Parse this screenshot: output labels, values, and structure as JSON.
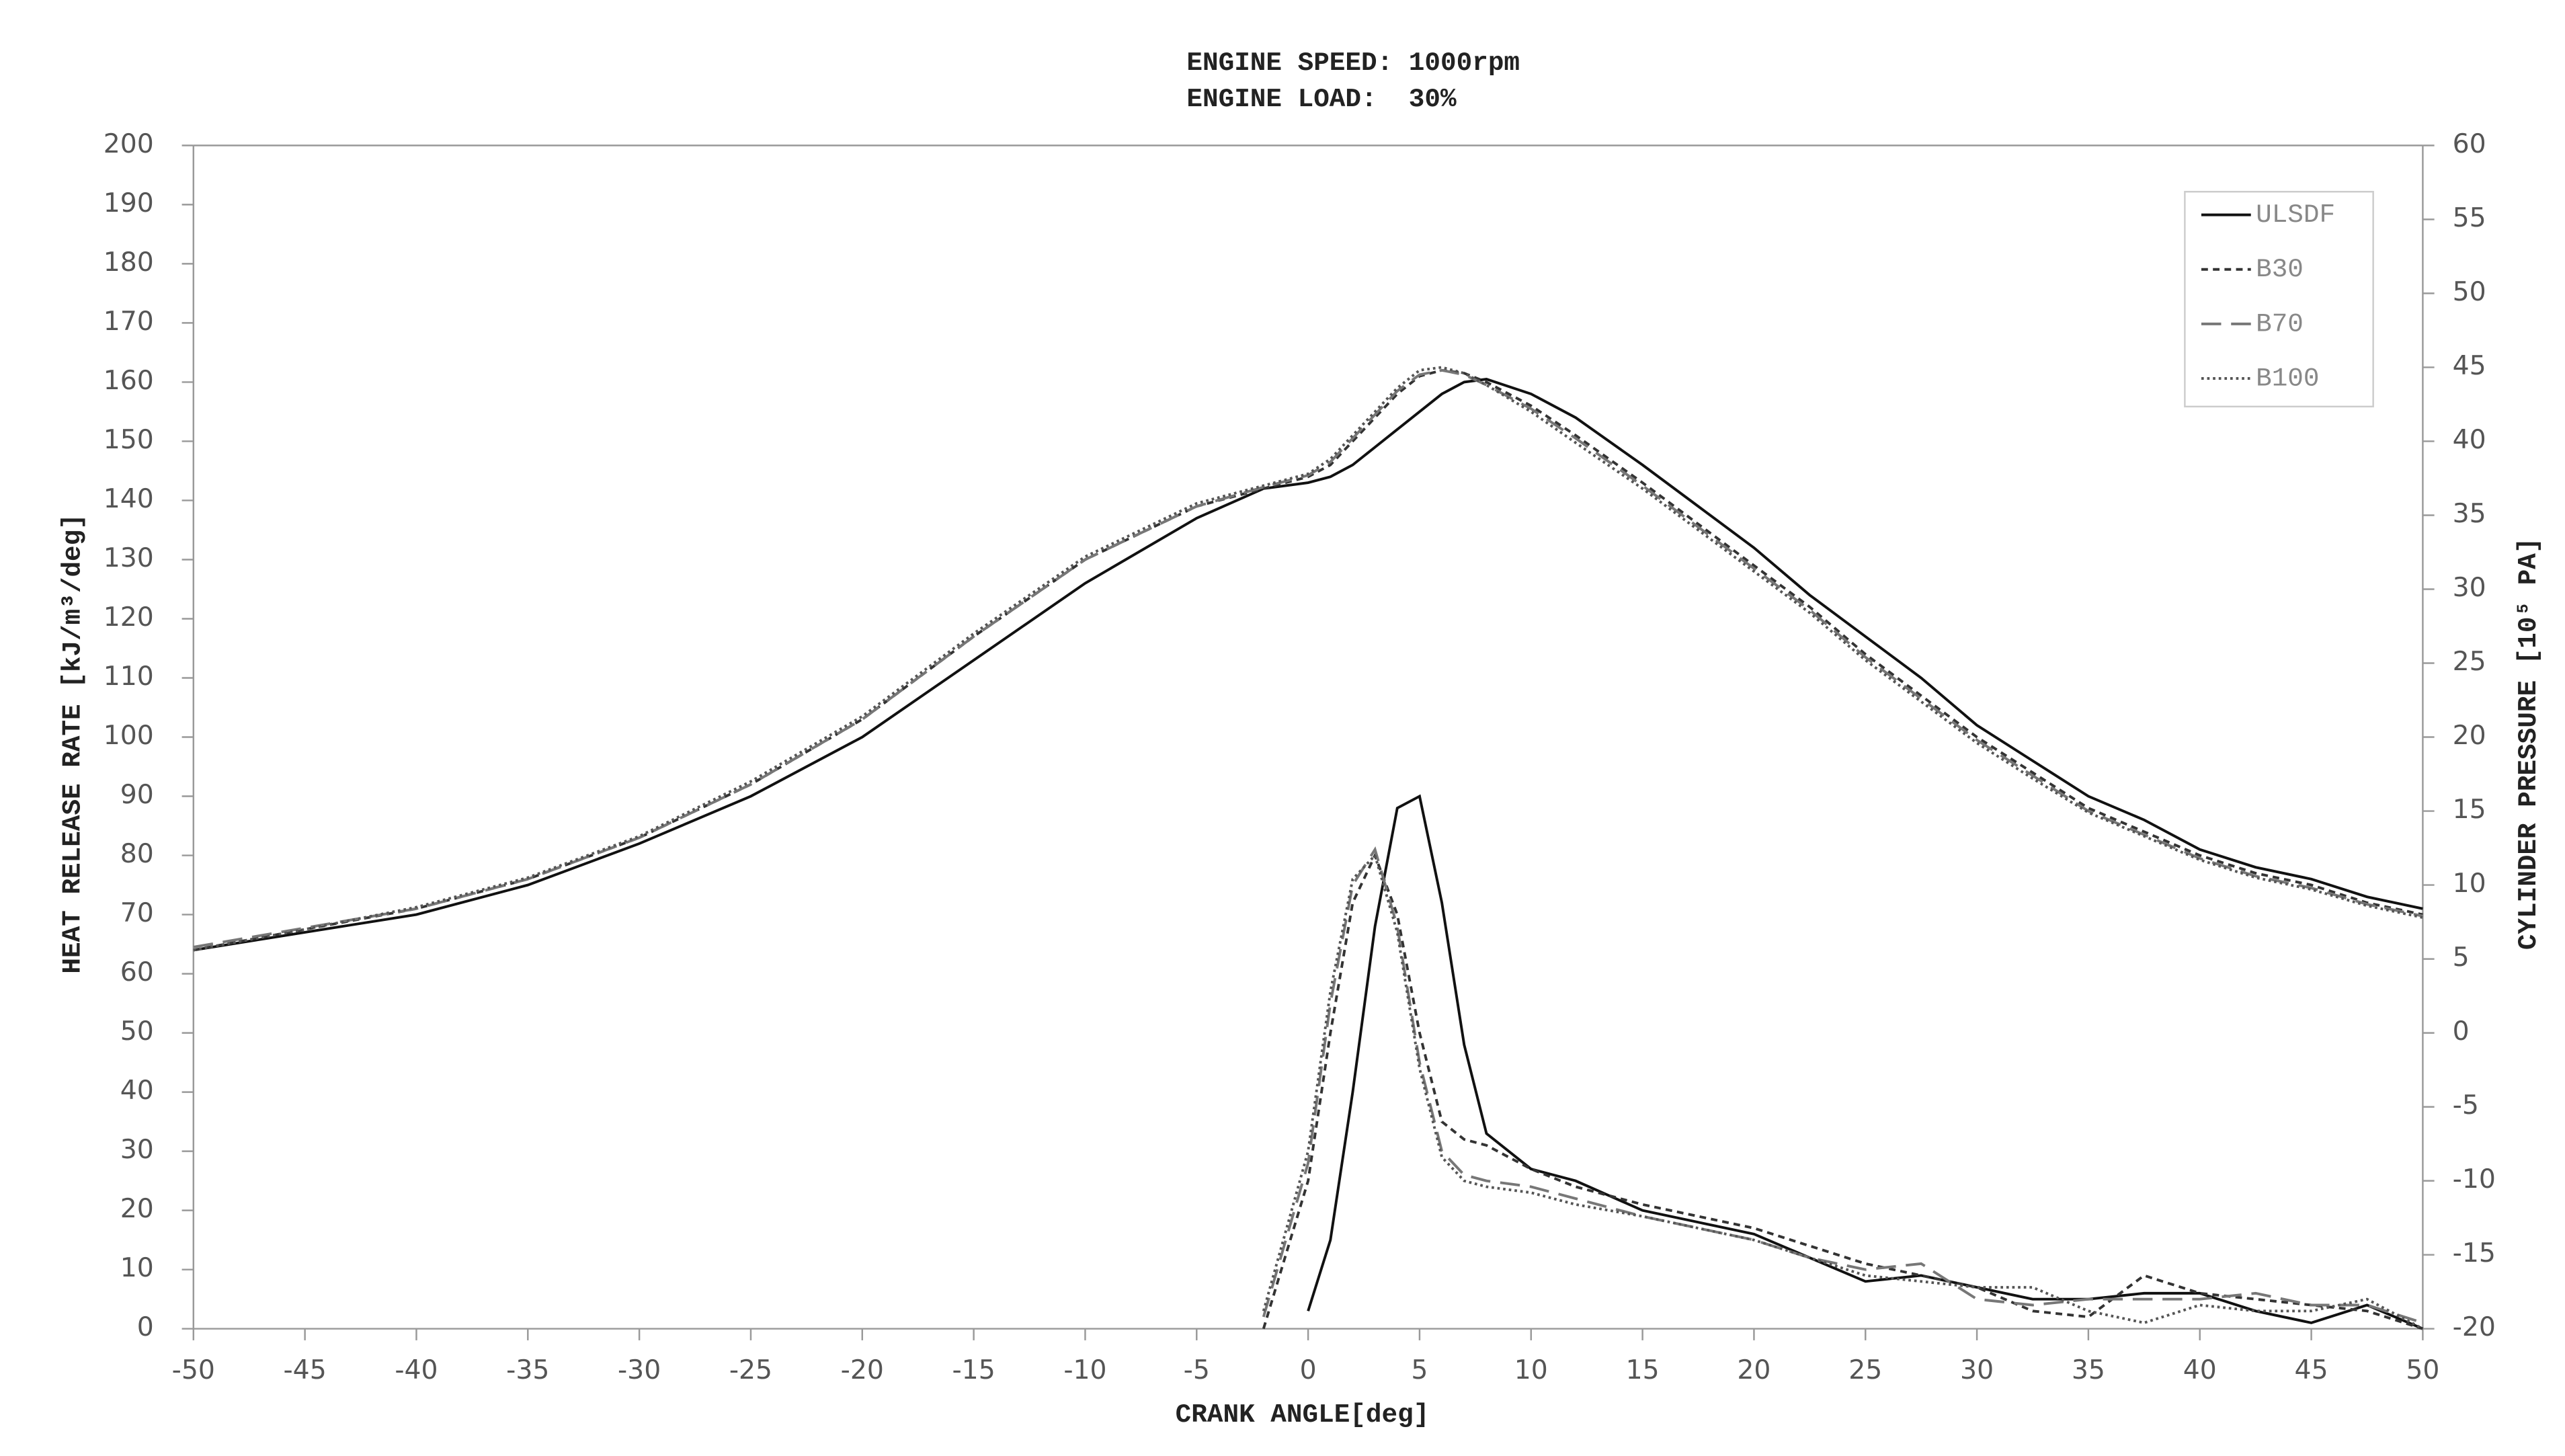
{
  "chart_data": {
    "type": "line",
    "title": "ENGINE SPEED: 1000rpm",
    "subtitle": "ENGINE LOAD:  30%",
    "x_label": "CRANK ANGLE[deg]",
    "y_label": "HEAT RELEASE RATE [kJ/m³/deg]",
    "y2_label": "CYLINDER PRESSURE [10⁵ PA]",
    "xlim": [
      -50,
      50
    ],
    "xticks": [
      -50,
      -45,
      -40,
      -35,
      -30,
      -25,
      -20,
      -15,
      -10,
      -5,
      0,
      5,
      10,
      15,
      20,
      25,
      30,
      35,
      40,
      45,
      50
    ],
    "ylim": [
      0,
      200
    ],
    "yticks": [
      0,
      10,
      20,
      30,
      40,
      50,
      60,
      70,
      80,
      90,
      100,
      110,
      120,
      130,
      140,
      150,
      160,
      170,
      180,
      190,
      200
    ],
    "y2lim": [
      -20,
      60
    ],
    "y2ticks": [
      -20,
      -15,
      -10,
      -5,
      0,
      5,
      10,
      15,
      20,
      25,
      30,
      35,
      40,
      45,
      50,
      55,
      60
    ],
    "grid": false,
    "legend": "upper right",
    "x": [
      -50,
      -45,
      -40,
      -35,
      -30,
      -25,
      -20,
      -15,
      -10,
      -5,
      -2,
      0,
      1,
      2,
      3,
      4,
      5,
      6,
      7,
      8,
      10,
      12,
      15,
      17.5,
      20,
      22.5,
      25,
      27.5,
      30,
      32.5,
      35,
      37.5,
      40,
      42.5,
      45,
      47.5,
      50
    ],
    "series": [
      {
        "name": "ULSDF",
        "color": "#111111",
        "dash": "none",
        "values": [
          null,
          null,
          null,
          null,
          null,
          null,
          null,
          null,
          null,
          null,
          null,
          3,
          15,
          40,
          68,
          88,
          90,
          72,
          48,
          33,
          27,
          25,
          20,
          18,
          16,
          12,
          8,
          9,
          7,
          5,
          5,
          6,
          6,
          3,
          1,
          4,
          0
        ],
        "pressure": [
          5.6,
          6.8,
          8,
          10,
          12.8,
          16,
          20,
          25.2,
          30.4,
          34.8,
          36.8,
          37.2,
          37.6,
          38.4,
          39.6,
          40.8,
          42,
          43.2,
          44,
          44.2,
          43.2,
          41.6,
          38.4,
          35.6,
          32.8,
          29.6,
          26.8,
          24,
          20.8,
          18.4,
          16,
          14.4,
          12.4,
          11.2,
          10.4,
          9.2,
          8.4
        ]
      },
      {
        "name": "B30",
        "color": "#333333",
        "dash": "4,3",
        "values": [
          null,
          null,
          null,
          null,
          null,
          null,
          null,
          null,
          null,
          null,
          0,
          25,
          50,
          72,
          80,
          70,
          50,
          35,
          32,
          31,
          27,
          24,
          21,
          19,
          17,
          14,
          11,
          9,
          7,
          3,
          2,
          9,
          6,
          5,
          4,
          3,
          0
        ],
        "pressure": [
          5.6,
          7,
          8.4,
          10.4,
          13.2,
          16.8,
          21.2,
          26.8,
          32,
          35.6,
          36.8,
          37.6,
          38.4,
          40,
          41.6,
          43.2,
          44.4,
          44.8,
          44.6,
          44,
          42.4,
          40.4,
          37.2,
          34.4,
          31.6,
          28.8,
          25.6,
          22.8,
          20,
          17.6,
          15.2,
          13.6,
          12,
          10.8,
          10,
          8.8,
          8
        ]
      },
      {
        "name": "B70",
        "color": "#777777",
        "dash": "12,6",
        "values": [
          null,
          null,
          null,
          null,
          null,
          null,
          null,
          null,
          null,
          null,
          2,
          28,
          55,
          75,
          81,
          68,
          45,
          30,
          26,
          25,
          24,
          22,
          19,
          17,
          15,
          12,
          10,
          11,
          5,
          4,
          5,
          5,
          5,
          6,
          4,
          4,
          1
        ],
        "pressure": [
          5.8,
          7.1,
          8.4,
          10.4,
          13.2,
          16.8,
          21.2,
          26.8,
          32,
          35.6,
          36.9,
          37.7,
          38.6,
          40.2,
          41.8,
          43.4,
          44.5,
          44.8,
          44.5,
          43.8,
          42.2,
          40.2,
          37,
          34.2,
          31.4,
          28.6,
          25.4,
          22.6,
          19.8,
          17.4,
          15,
          13.4,
          11.8,
          10.6,
          9.8,
          8.7,
          7.9
        ]
      },
      {
        "name": "B100",
        "color": "#555555",
        "dash": "1.5,2",
        "values": [
          null,
          null,
          null,
          null,
          null,
          null,
          null,
          null,
          null,
          null,
          3,
          30,
          57,
          76,
          80,
          67,
          44,
          29,
          25,
          24,
          23,
          21,
          19,
          17,
          15,
          12,
          9,
          8,
          7,
          7,
          3,
          1,
          4,
          3,
          3,
          5,
          0
        ],
        "pressure": [
          5.6,
          7,
          8.5,
          10.5,
          13.3,
          17,
          21.4,
          27,
          32.2,
          35.8,
          37,
          37.8,
          38.8,
          40.4,
          42,
          43.6,
          44.8,
          45,
          44.6,
          43.8,
          42,
          39.9,
          36.8,
          34,
          31.2,
          28.4,
          25.2,
          22.4,
          19.6,
          17.2,
          14.9,
          13.3,
          11.7,
          10.5,
          9.7,
          8.6,
          7.8
        ]
      }
    ]
  }
}
